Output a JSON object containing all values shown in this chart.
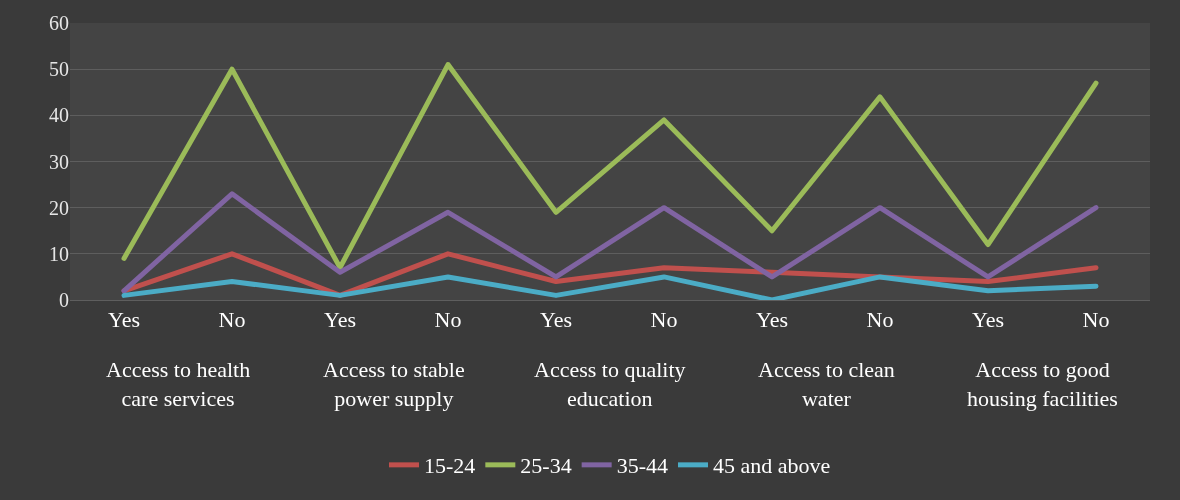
{
  "chart_data": {
    "type": "line",
    "categories": [
      "Yes",
      "No",
      "Yes",
      "No",
      "Yes",
      "No",
      "Yes",
      "No",
      "Yes",
      "No"
    ],
    "series": [
      {
        "name": "15-24",
        "color": "#c0504d",
        "values": [
          2,
          10,
          1,
          10,
          4,
          7,
          6,
          5,
          4,
          7
        ]
      },
      {
        "name": "25-34",
        "color": "#9bbb59",
        "values": [
          9,
          50,
          7,
          51,
          19,
          39,
          15,
          44,
          12,
          47
        ]
      },
      {
        "name": "35-44",
        "color": "#8064a2",
        "values": [
          2,
          23,
          6,
          19,
          5,
          20,
          5,
          20,
          5,
          20
        ]
      },
      {
        "name": "45 and above",
        "color": "#4bacc6",
        "values": [
          1,
          4,
          1,
          5,
          1,
          5,
          0,
          5,
          2,
          3
        ]
      }
    ],
    "annotations": [
      "Access to health care services",
      "Access to stable power supply",
      "Access to quality education",
      "Access to clean water",
      "Access to good housing facilities"
    ],
    "ylim": [
      0,
      60
    ],
    "yticks": [
      0,
      10,
      20,
      30,
      40,
      50,
      60
    ],
    "grid": "y",
    "legend": "bottom",
    "marker": "none",
    "line_style": "solid"
  }
}
